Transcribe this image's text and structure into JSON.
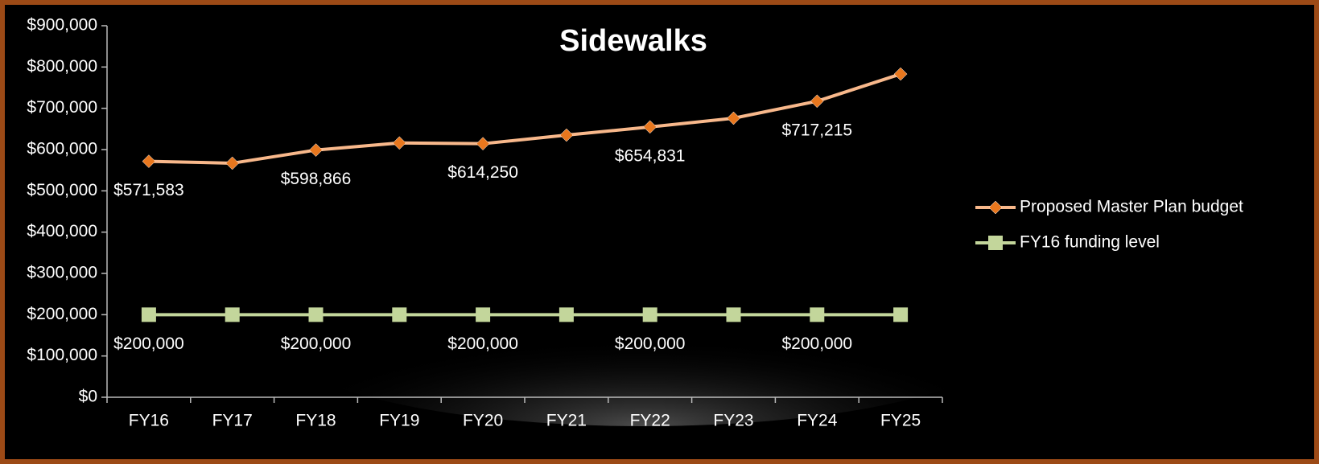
{
  "chart_data": {
    "type": "line",
    "title": "Sidewalks",
    "categories": [
      "FY16",
      "FY17",
      "FY18",
      "FY19",
      "FY20",
      "FY21",
      "FY22",
      "FY23",
      "FY24",
      "FY25"
    ],
    "series": [
      {
        "name": "Proposed Master Plan budget",
        "color": "#f8b88b",
        "marker_color": "#e8771e",
        "marker": "diamond",
        "values": [
          571583,
          567000,
          598866,
          616000,
          614250,
          635000,
          654831,
          676000,
          717215,
          783000
        ],
        "value_labels": [
          "$571,583",
          null,
          "$598,866",
          null,
          "$614,250",
          null,
          "$654,831",
          null,
          "$717,215",
          null
        ]
      },
      {
        "name": "FY16 funding level",
        "color": "#c3d69b",
        "marker_color": "#c3d69b",
        "marker": "square",
        "values": [
          200000,
          200000,
          200000,
          200000,
          200000,
          200000,
          200000,
          200000,
          200000,
          200000
        ],
        "value_labels": [
          "$200,000",
          null,
          "$200,000",
          null,
          "$200,000",
          null,
          "$200,000",
          null,
          "$200,000",
          null
        ]
      }
    ],
    "ylim": [
      0,
      900000
    ],
    "yticks": [
      {
        "value": 0,
        "label": "$0"
      },
      {
        "value": 100000,
        "label": "$100,000"
      },
      {
        "value": 200000,
        "label": "$200,000"
      },
      {
        "value": 300000,
        "label": "$300,000"
      },
      {
        "value": 400000,
        "label": "$400,000"
      },
      {
        "value": 500000,
        "label": "$500,000"
      },
      {
        "value": 600000,
        "label": "$600,000"
      },
      {
        "value": 700000,
        "label": "$700,000"
      },
      {
        "value": 800000,
        "label": "$800,000"
      },
      {
        "value": 900000,
        "label": "$900,000"
      }
    ],
    "grid": false,
    "legend": "right"
  }
}
